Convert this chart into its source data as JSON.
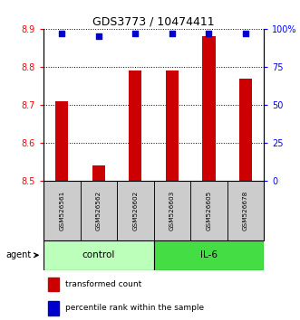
{
  "title": "GDS3773 / 10474411",
  "samples": [
    "GSM526561",
    "GSM526562",
    "GSM526602",
    "GSM526603",
    "GSM526605",
    "GSM526678"
  ],
  "bar_values": [
    8.71,
    8.54,
    8.79,
    8.79,
    8.88,
    8.77
  ],
  "percentile_values": [
    97,
    95,
    97,
    97,
    97,
    97
  ],
  "ylim_left": [
    8.5,
    8.9
  ],
  "ylim_right": [
    0,
    100
  ],
  "yticks_left": [
    8.5,
    8.6,
    8.7,
    8.8,
    8.9
  ],
  "yticks_right": [
    0,
    25,
    50,
    75,
    100
  ],
  "control_color": "#BBFFBB",
  "il6_color": "#44DD44",
  "bar_color": "#CC0000",
  "dot_color": "#0000CC",
  "bar_width": 0.35,
  "sample_box_color": "#CCCCCC",
  "legend_bar_label": "transformed count",
  "legend_dot_label": "percentile rank within the sample"
}
